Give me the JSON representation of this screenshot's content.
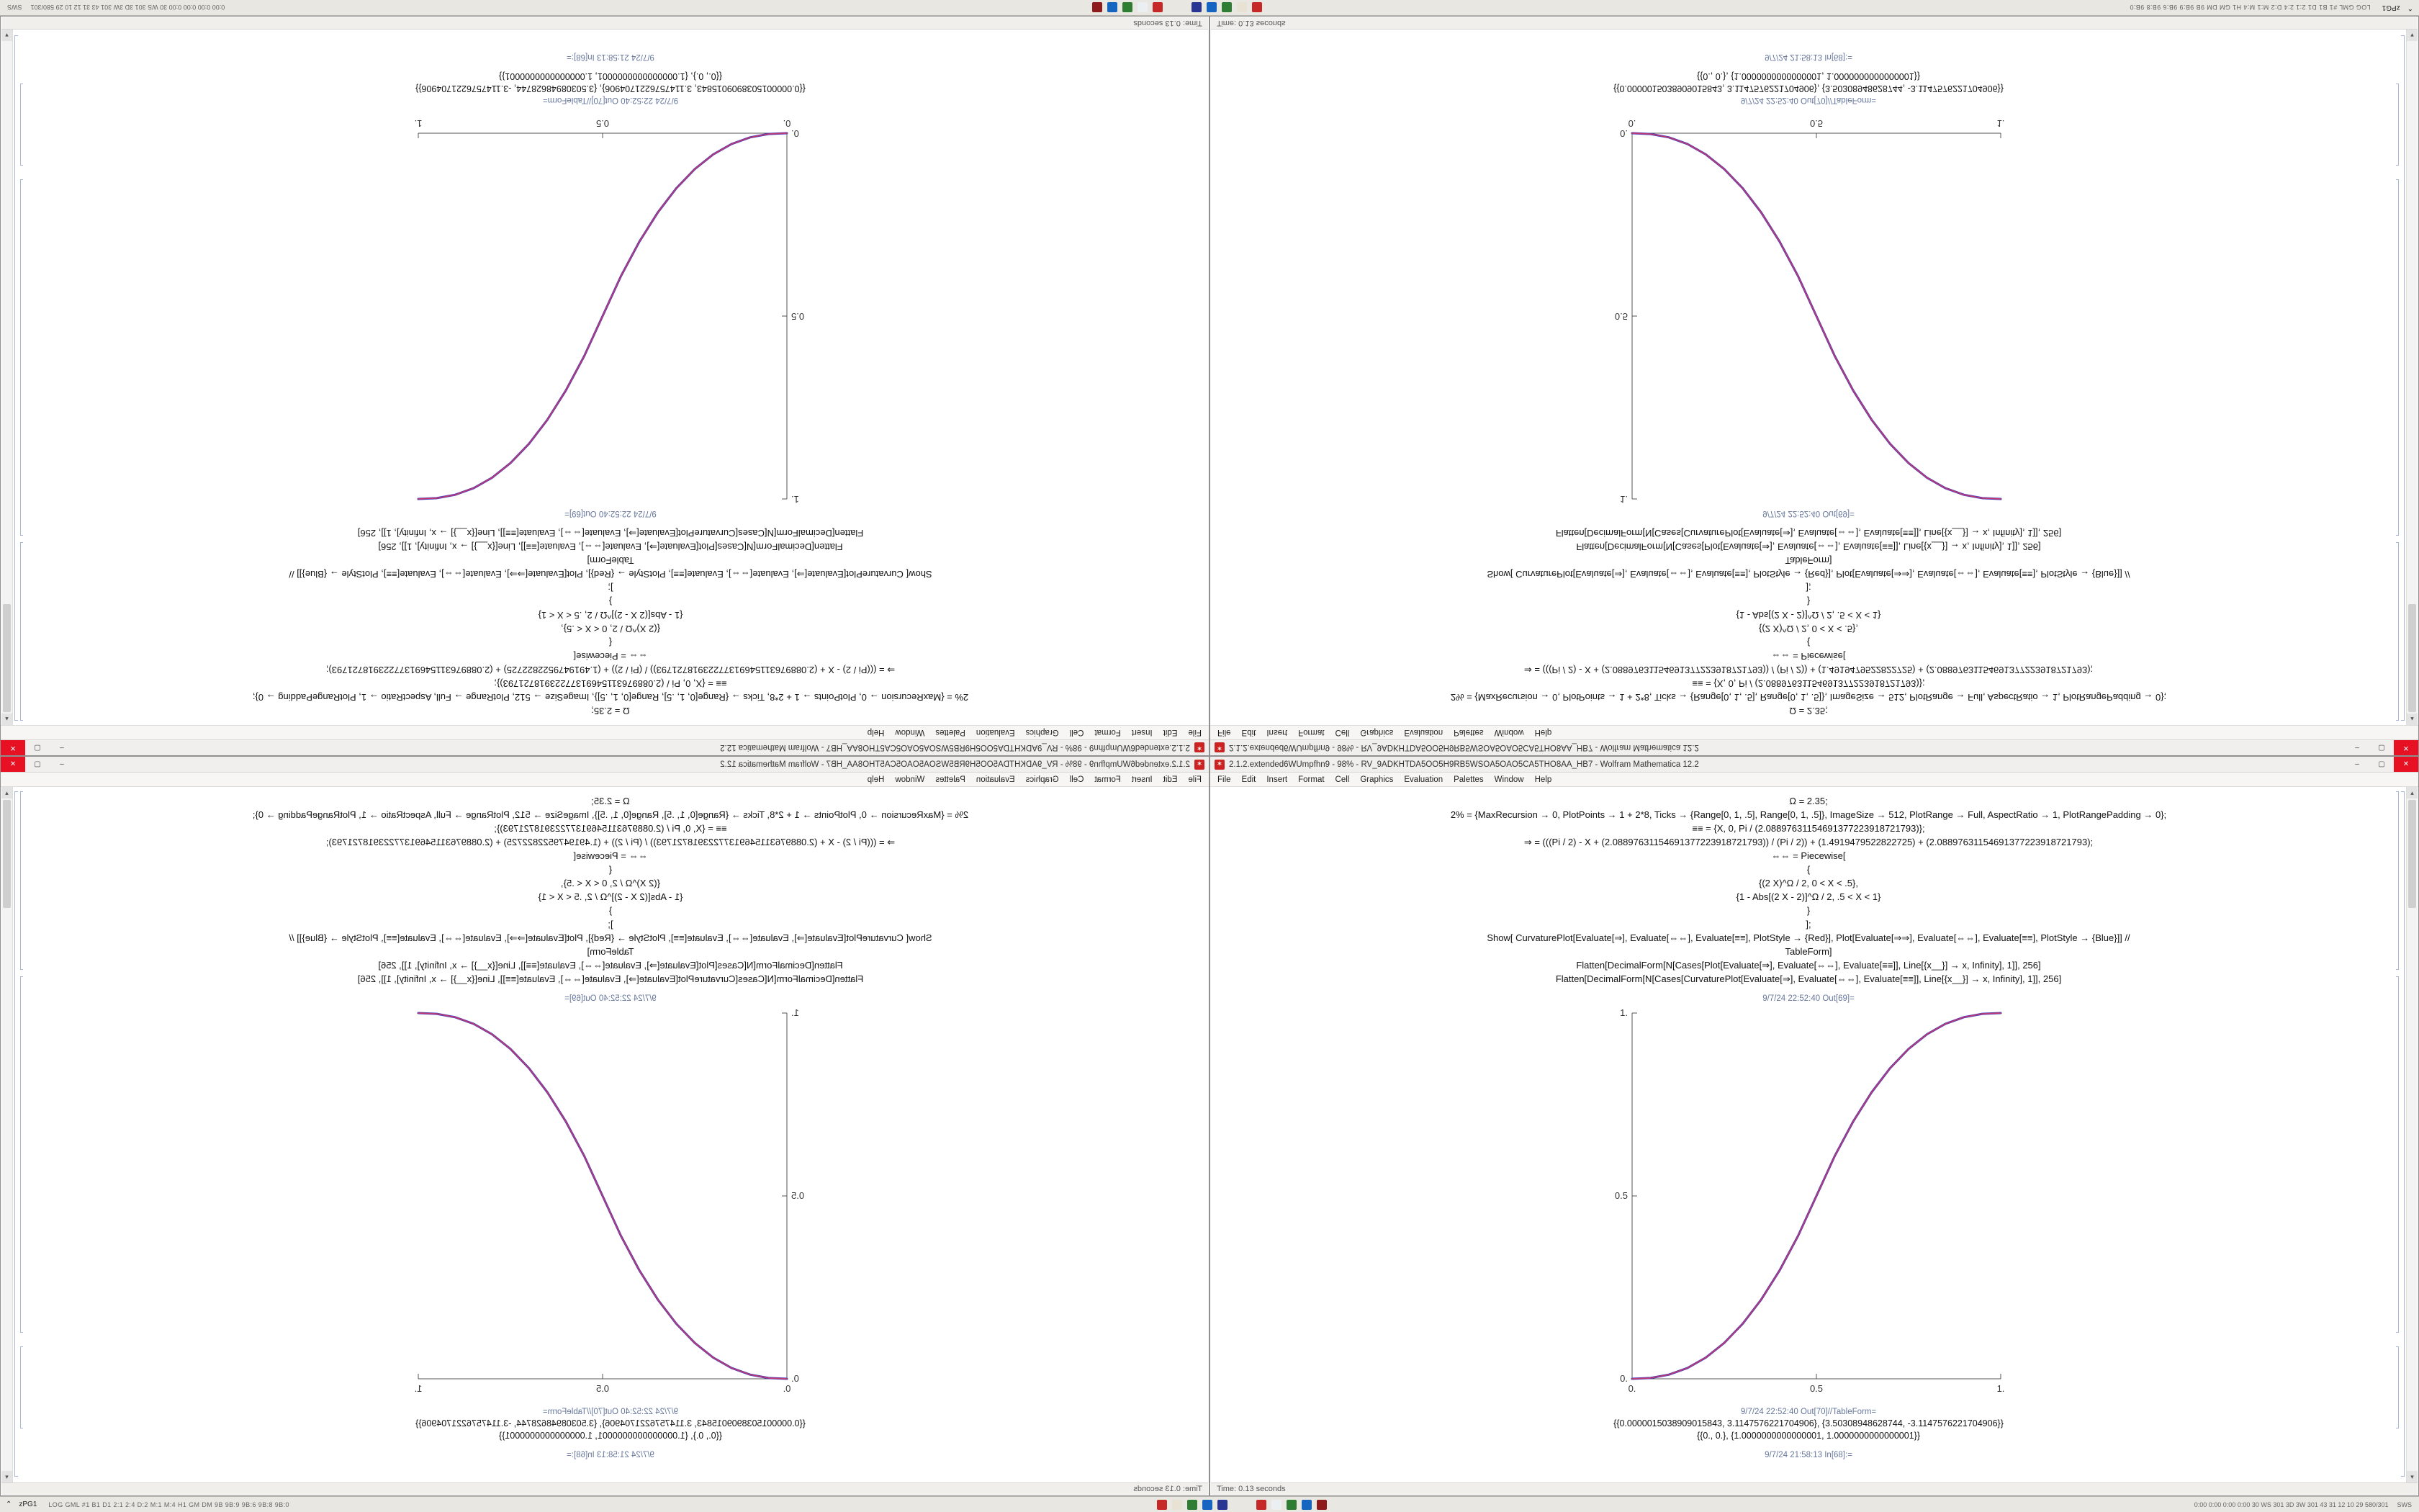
{
  "taskbar": {
    "chevron": "⌃",
    "start_label": "zPG1",
    "left_stats": "LOG GML #1  B1 D1 2:1 2:4 D:2 M:1 M:4  H1 GM DM 9B 9B:9 9B:6 9B:8 9B:0",
    "app_groups": [
      {
        "icons": [
          {
            "name": "taskbar-app-red",
            "color": "#c62828"
          },
          {
            "name": "taskbar-app-beige",
            "color": "#e7e2d3"
          },
          {
            "name": "taskbar-app-green",
            "color": "#2e7d32"
          },
          {
            "name": "taskbar-app-blue",
            "color": "#1565c0"
          },
          {
            "name": "taskbar-app-navy",
            "color": "#283593"
          }
        ]
      },
      {
        "icons": [
          {
            "name": "taskbar-app-red-2",
            "color": "#c62828"
          },
          {
            "name": "taskbar-app-white",
            "color": "#eceff1"
          },
          {
            "name": "taskbar-app-green-2",
            "color": "#2e7d32"
          },
          {
            "name": "taskbar-app-blue-2",
            "color": "#1565c0"
          },
          {
            "name": "taskbar-app-maroon",
            "color": "#8e1b1b"
          }
        ]
      }
    ],
    "tray_stats": "0:00 0:00 0:00 0:00 30 WS 301 3D 3W 301 43 31 12 10 29 580/301",
    "tray_end": "SWS"
  },
  "window": {
    "title": "2.1.2.extended6WUmpfhn9 - 98% - RV_9ADKHTDA5OO5H9RB5WSOA5OAO5CA5THO8AA_HB7 - Wolfram Mathematica 12.2",
    "controls": {
      "minimize": "–",
      "maximize": "▢",
      "close": "✕"
    },
    "menu": [
      "File",
      "Edit",
      "Insert",
      "Format",
      "Cell",
      "Graphics",
      "Evaluation",
      "Palettes",
      "Window",
      "Help"
    ],
    "code_lines": [
      "Ω = 2.35;",
      "2% = {MaxRecursion → 0, PlotPoints → 1 + 2*8, Ticks → {Range[0, 1, .5], Range[0, 1, .5]}, ImageSize → 512, PlotRange → Full, AspectRatio → 1, PlotRangePadding → 0};",
      "≡≡ = {X, 0, Pi / (2.08897631154691377223918721793)};",
      "⇒ = (((Pi / 2) - X + (2.08897631154691377223918721793)) / (Pi / 2)) + (1.4919479522822725) + (2.08897631154691377223918721793);",
      "⇔⇔ = Piecewise[",
      "{",
      "{(2 X)^Ω / 2, 0 < X < .5},",
      "{1 - Abs[(2 X - 2)]^Ω / 2, .5 < X < 1}",
      "}",
      "];",
      "Show[ CurvaturePlot[Evaluate[⇒], Evaluate[⇔⇔], Evaluate[≡≡], PlotStyle → {Red}], Plot[Evaluate[⇒⇒], Evaluate[⇔⇔], Evaluate[≡≡], PlotStyle → {Blue}]] //",
      "TableForm]",
      "Flatten[DecimalForm[N[Cases[Plot[Evaluate[⇒], Evaluate[⇔⇔], Evaluate[≡≡]], Line[{x__}] → x, Infinity], 1]], 256]",
      "Flatten[DecimalForm[N[Cases[CurvaturePlot[Evaluate[⇒], Evaluate[⇔⇔], Evaluate[≡≡]], Line[{x__}] → x, Infinity], 1]], 256]"
    ],
    "out_plot_label": "9/7/24 22:52:40 Out[69]=",
    "out_table_label": "9/7/24 22:52:40 Out[70]//TableForm=",
    "table_rows": [
      "{{0.0000015038909015843, 3.1147576221704906}, {3.50308948628744, -3.1147576221704906}}",
      "{{0., 0.}, {1.0000000000000001, 1.0000000000000001}}"
    ],
    "clipped_line": "9/7/24 21:58:13 In[68]:=",
    "status_left": "Time: 0.13 seconds"
  },
  "chart_data": {
    "type": "line",
    "title": "",
    "xlabel": "",
    "ylabel": "",
    "xlim": [
      0,
      1
    ],
    "ylim": [
      0,
      1
    ],
    "grid": false,
    "legend": "none",
    "xticks": {
      "values": [
        0,
        0.5,
        1
      ],
      "labels": [
        "0.",
        "0.5",
        "1."
      ]
    },
    "yticks": {
      "values": [
        0,
        0.5,
        1
      ],
      "labels": [
        "0.",
        "0.5",
        "1."
      ]
    },
    "x": [
      0,
      0.05,
      0.1,
      0.15,
      0.2,
      0.25,
      0.3,
      0.35,
      0.4,
      0.45,
      0.5,
      0.55,
      0.6,
      0.65,
      0.7,
      0.75,
      0.8,
      0.85,
      0.9,
      0.95,
      1
    ],
    "series": [
      {
        "name": "Plot[⇒⇒] (Blue)",
        "color": "#3a3ac8",
        "width": 3,
        "values": [
          0,
          0.0022,
          0.0114,
          0.0295,
          0.058,
          0.0981,
          0.1505,
          0.2163,
          0.296,
          0.3903,
          0.5,
          0.6097,
          0.704,
          0.7837,
          0.8495,
          0.9019,
          0.942,
          0.9705,
          0.9886,
          0.9978,
          1
        ]
      },
      {
        "name": "CurvaturePlot[⇒] (Red)",
        "color": "#c03a6e",
        "width": 1.7,
        "values": [
          0,
          0.0022,
          0.0114,
          0.0295,
          0.058,
          0.0981,
          0.1505,
          0.2163,
          0.296,
          0.3903,
          0.5,
          0.6097,
          0.704,
          0.7837,
          0.8495,
          0.9019,
          0.942,
          0.9705,
          0.9886,
          0.9978,
          1
        ]
      }
    ]
  }
}
